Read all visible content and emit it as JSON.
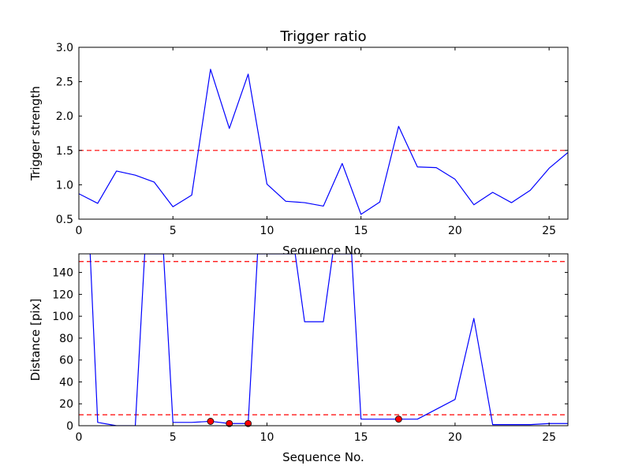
{
  "chart_data": [
    {
      "type": "line",
      "title": "Trigger ratio",
      "xlabel": "Sequence No.",
      "ylabel": "Trigger strength",
      "xlim": [
        0,
        26
      ],
      "ylim": [
        0.5,
        3.0
      ],
      "xticks": [
        0,
        5,
        10,
        15,
        20,
        25
      ],
      "yticks": [
        0.5,
        1.0,
        1.5,
        2.0,
        2.5,
        3.0
      ],
      "ytick_labels": [
        "0.5",
        "1.0",
        "1.5",
        "2.0",
        "2.5",
        "3.0"
      ],
      "grid": false,
      "series": [
        {
          "color": "#0000ff",
          "x": [
            0,
            1,
            2,
            3,
            4,
            5,
            6,
            7,
            8,
            9,
            10,
            11,
            12,
            13,
            14,
            15,
            16,
            17,
            18,
            19,
            20,
            21,
            22,
            23,
            24,
            25,
            26
          ],
          "y": [
            0.87,
            0.73,
            1.2,
            1.14,
            1.04,
            0.68,
            0.85,
            2.68,
            1.82,
            2.61,
            1.01,
            0.76,
            0.74,
            0.69,
            1.31,
            0.57,
            0.75,
            1.85,
            1.26,
            1.25,
            1.08,
            0.71,
            0.89,
            0.74,
            0.92,
            1.24,
            1.47
          ]
        }
      ],
      "hlines": [
        {
          "y": 1.5,
          "color": "#ff0000",
          "style": "dashed"
        }
      ]
    },
    {
      "type": "line",
      "title": "",
      "xlabel": "Sequence No.",
      "ylabel": "Distance [pix]",
      "xlim": [
        0,
        26
      ],
      "ylim": [
        0,
        157
      ],
      "xticks": [
        0,
        5,
        10,
        15,
        20,
        25
      ],
      "yticks": [
        0,
        20,
        40,
        60,
        80,
        100,
        120,
        140
      ],
      "ytick_labels": [
        "0",
        "20",
        "40",
        "60",
        "80",
        "100",
        "120",
        "140"
      ],
      "grid": false,
      "series": [
        {
          "color": "#0000ff",
          "x": [
            0.6,
            1,
            2,
            3,
            3.5,
            4.5,
            5,
            6,
            7,
            8,
            9,
            9.5,
            11.5,
            12,
            13,
            13.5,
            14.5,
            15,
            16,
            17,
            18,
            19,
            20,
            21,
            22,
            23,
            24,
            25,
            26
          ],
          "y": [
            157,
            3,
            0,
            0,
            157,
            157,
            3,
            3,
            4,
            2,
            2,
            157,
            157,
            95,
            95,
            157,
            157,
            6,
            6,
            6,
            6,
            15,
            24,
            98,
            1,
            1,
            1,
            2,
            2
          ]
        }
      ],
      "markers": {
        "color": "#ff0000",
        "x": [
          7,
          8,
          9,
          17
        ],
        "y": [
          4,
          2,
          2,
          6
        ]
      },
      "hlines": [
        {
          "y": 150,
          "color": "#ff0000",
          "style": "dashed"
        },
        {
          "y": 10,
          "color": "#ff0000",
          "style": "dashed"
        }
      ]
    }
  ]
}
